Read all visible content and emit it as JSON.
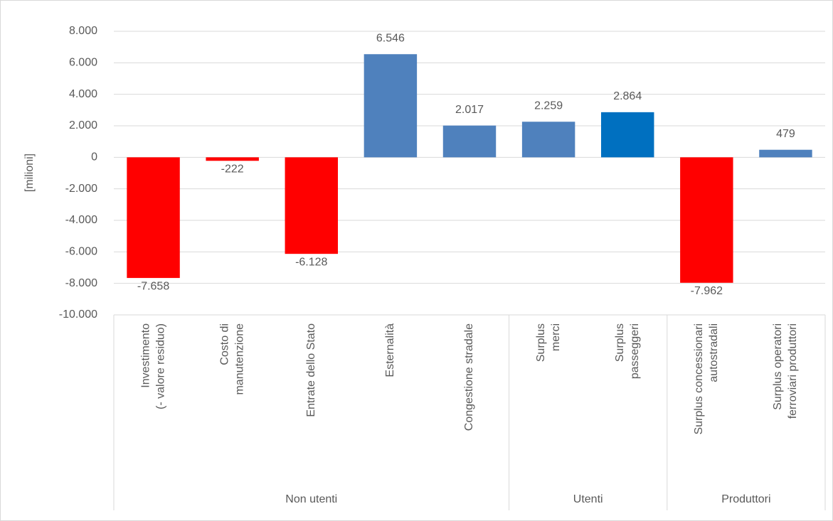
{
  "chart_data": {
    "type": "bar",
    "y_label": "[milioni]",
    "categories": [
      [
        "Investimento",
        "(- valore residuo)"
      ],
      [
        "Costo di",
        "manutenzione"
      ],
      [
        "Entrate dello Stato"
      ],
      [
        "Esternalità"
      ],
      [
        "Congestione stradale"
      ],
      [
        "Surplus",
        "merci"
      ],
      [
        "Surplus",
        "passeggeri"
      ],
      [
        "Surplus concessionari",
        "autostradali"
      ],
      [
        "Surplus operatori",
        "ferroviari produttori"
      ]
    ],
    "values": [
      -7658,
      -222,
      -6128,
      6546,
      2017,
      2259,
      2864,
      -7962,
      479
    ],
    "value_labels": [
      "-7.658",
      "-222",
      "-6.128",
      "6.546",
      "2.017",
      "2.259",
      "2.864",
      "-7.962",
      "479"
    ],
    "colors": [
      "#ff0000",
      "#ff0000",
      "#ff0000",
      "#4f81bd",
      "#4f81bd",
      "#4f81bd",
      "#0070c0",
      "#ff0000",
      "#4f81bd"
    ],
    "groups": [
      {
        "name": "Non utenti",
        "size": 5
      },
      {
        "name": "Utenti",
        "size": 2
      },
      {
        "name": "Produttori",
        "size": 2
      }
    ],
    "ylim": [
      -10000,
      8000
    ],
    "yticks": [
      {
        "value": -10000,
        "label": "-10.000"
      },
      {
        "value": -8000,
        "label": "-8.000"
      },
      {
        "value": -6000,
        "label": "-6.000"
      },
      {
        "value": -4000,
        "label": "-4.000"
      },
      {
        "value": -2000,
        "label": "-2.000"
      },
      0,
      {
        "value": 2000,
        "label": "2.000"
      },
      {
        "value": 4000,
        "label": "4.000"
      },
      {
        "value": 6000,
        "label": "6.000"
      },
      {
        "value": 8000,
        "label": "8.000"
      }
    ],
    "grid": true
  }
}
